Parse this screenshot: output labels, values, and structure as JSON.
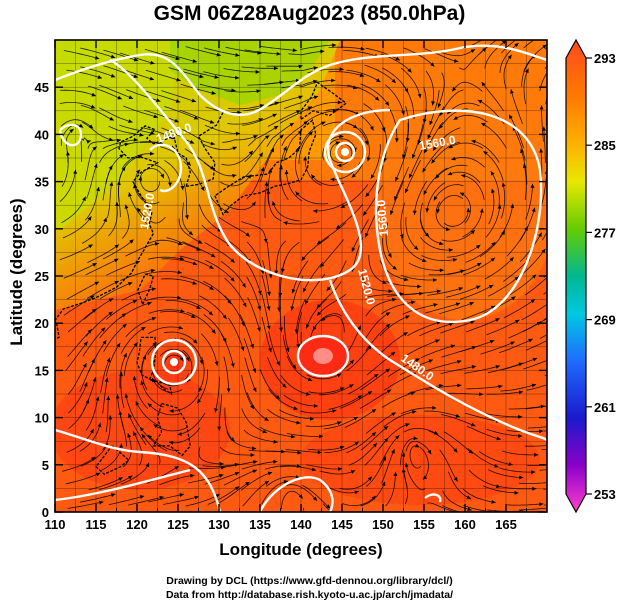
{
  "title": "GSM 06Z28Aug2023 (850.0hPa)",
  "axes": {
    "xlabel": "Longitude (degrees)",
    "ylabel": "Latitude  (degrees)",
    "xticks": [
      "110",
      "115",
      "120",
      "125",
      "130",
      "135",
      "140",
      "145",
      "150",
      "155",
      "160",
      "165"
    ],
    "yticks": [
      "0",
      "5",
      "10",
      "15",
      "20",
      "25",
      "30",
      "35",
      "40",
      "45"
    ],
    "xrange": [
      110,
      170
    ],
    "yrange": [
      0,
      50
    ]
  },
  "colorbar": {
    "ticks": [
      "293",
      "285",
      "277",
      "269",
      "261",
      "253"
    ],
    "colors": [
      "#ff4a1c",
      "#ff8a00",
      "#f2d400",
      "#66cc00",
      "#00b35a",
      "#00c8e0",
      "#1e6cff",
      "#1a1acc",
      "#8a00c8",
      "#ff40d0"
    ]
  },
  "contour_labels": [
    "1480.0",
    "1520.0",
    "1560.0",
    "1560.0",
    "1520.0",
    "1480.0"
  ],
  "credits": {
    "line1": "Drawing by DCL (https://www.gfd-dennou.org/library/dcl/)",
    "line2": "Data from http://database.rish.kyoto-u.ac.jp/arch/jmadata/"
  },
  "colors": {
    "warm": "#ff3f10",
    "warm_mid": "#ff6a12",
    "orange": "#ff8c00",
    "yellow": "#e8e800",
    "green": "#7ad400",
    "contour": "#ffffff",
    "streamline": "#000000"
  }
}
